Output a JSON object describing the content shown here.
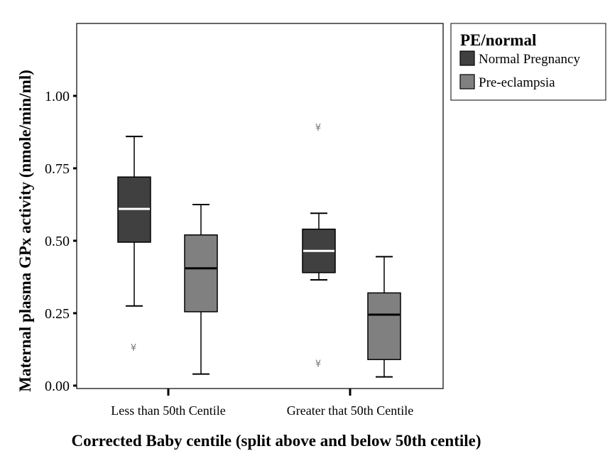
{
  "chart_data": {
    "type": "box",
    "xlabel": "Corrected Baby centile (split above and below 50th centile)",
    "ylabel": "Maternal plasma GPx activity (nmole/min/ml)",
    "ylim": [
      -0.01,
      1.25
    ],
    "yticks": [
      0.0,
      0.25,
      0.5,
      0.75,
      1.0
    ],
    "ytick_labels": [
      "0.00",
      "0.25",
      "0.50",
      "0.75",
      "1.00"
    ],
    "categories": [
      "Less than 50th Centile",
      "Greater that 50th Centile"
    ],
    "legend": {
      "title": "PE/normal",
      "position": "outside-top-right"
    },
    "series": [
      {
        "name": "Normal Pregnancy",
        "color": "#404040",
        "median_color": "#ffffff",
        "boxes": [
          {
            "whisker_low": 0.275,
            "q1": 0.495,
            "median": 0.61,
            "q3": 0.72,
            "whisker_high": 0.86,
            "outliers": [
              0.135
            ]
          },
          {
            "whisker_low": 0.365,
            "q1": 0.39,
            "median": 0.465,
            "q3": 0.54,
            "whisker_high": 0.595,
            "outliers": [
              0.895,
              0.08
            ]
          }
        ]
      },
      {
        "name": "Pre-eclampsia",
        "color": "#808080",
        "median_color": "#000000",
        "boxes": [
          {
            "whisker_low": 0.04,
            "q1": 0.255,
            "median": 0.405,
            "q3": 0.52,
            "whisker_high": 0.625,
            "outliers": []
          },
          {
            "whisker_low": 0.03,
            "q1": 0.09,
            "median": 0.245,
            "q3": 0.32,
            "whisker_high": 0.445,
            "outliers": []
          }
        ]
      }
    ],
    "outlier_marker": "¥"
  }
}
